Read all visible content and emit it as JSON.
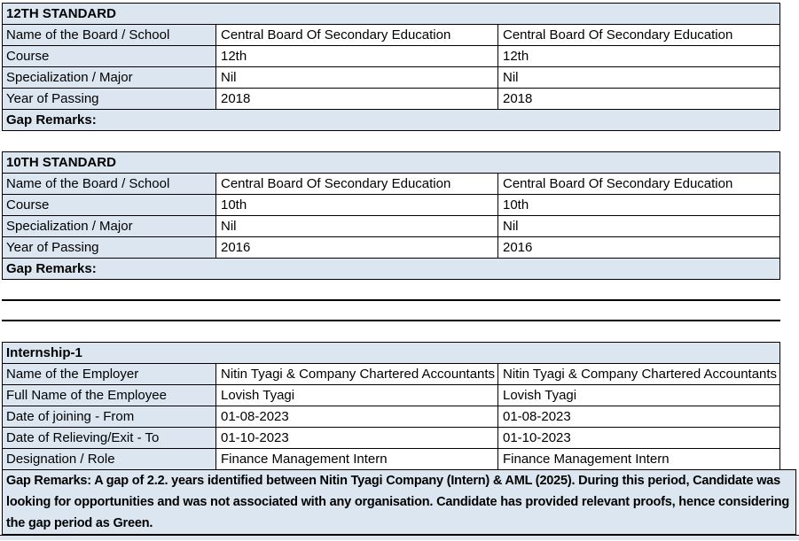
{
  "colors": {
    "highlight_bg": "#dce6f1",
    "cell_bg": "#ffffff",
    "border_color": "#000000",
    "text_color": "#000000"
  },
  "std12": {
    "title": "12TH STANDARD",
    "gap_remarks_label": "Gap Remarks:",
    "rows": [
      {
        "label": "Name of the Board / School",
        "value1": "Central Board Of Secondary Education",
        "value2": "Central Board Of Secondary Education"
      },
      {
        "label": "Course",
        "value1": "12th",
        "value2": "12th"
      },
      {
        "label": "Specialization / Major",
        "value1": "Nil",
        "value2": "Nil"
      },
      {
        "label": "Year of Passing",
        "value1": "2018",
        "value2": "2018"
      }
    ]
  },
  "std10": {
    "title": "10TH STANDARD",
    "gap_remarks_label": "Gap Remarks:",
    "rows": [
      {
        "label": "Name of the Board / School",
        "value1": "Central Board Of Secondary Education",
        "value2": "Central Board Of Secondary Education"
      },
      {
        "label": "Course",
        "value1": "10th",
        "value2": "10th"
      },
      {
        "label": "Specialization / Major",
        "value1": "Nil",
        "value2": "Nil"
      },
      {
        "label": "Year of Passing",
        "value1": "2016",
        "value2": "2016"
      }
    ]
  },
  "internship1": {
    "title": "Internship-1",
    "rows": [
      {
        "label": "Name of the Employer",
        "value1": "Nitin Tyagi & Company Chartered Accountants",
        "value2": "Nitin Tyagi & Company Chartered Accountants"
      },
      {
        "label": "Full Name of the Employee",
        "value1": "Lovish Tyagi",
        "value2": "Lovish Tyagi"
      },
      {
        "label": "Date of joining - From",
        "value1": "01-08-2023",
        "value2": "01-08-2023"
      },
      {
        "label": "Date of Relieving/Exit - To",
        "value1": "01-10-2023",
        "value2": "01-10-2023"
      },
      {
        "label": "Designation / Role",
        "value1": "Finance Management Intern",
        "value2": "Finance Management Intern"
      }
    ],
    "gap_remarks": "Gap Remarks: A gap of 2.2. years identified between Nitin Tyagi Company (Intern) & AML (2025). During this period, Candidate was looking for opportunities and was not associated with any organisation. Candidate has provided relevant proofs, hence considering the gap period as Green."
  }
}
